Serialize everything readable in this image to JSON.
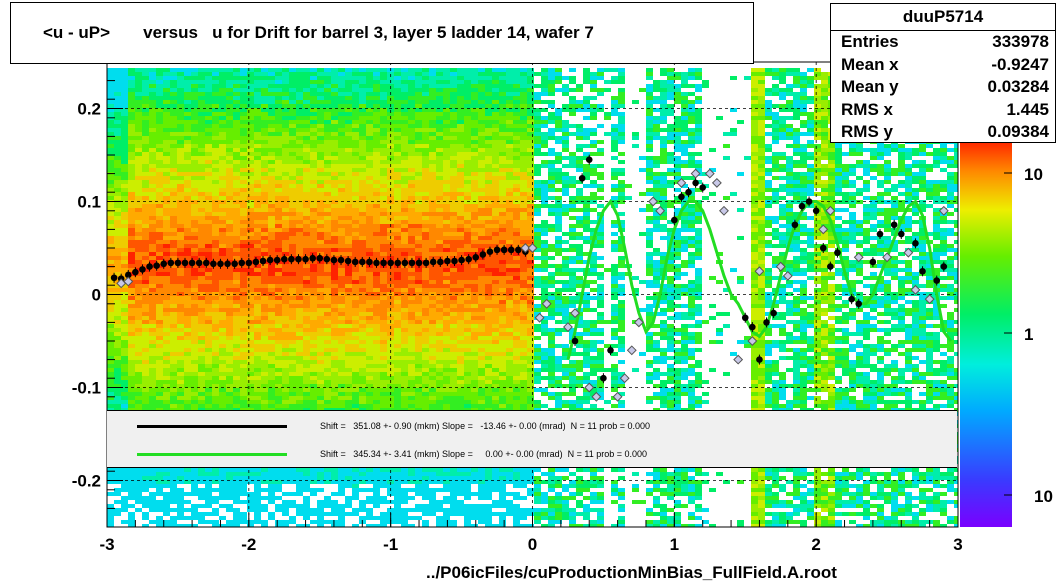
{
  "title": "<u - uP>       versus   u for Drift for barrel 3, layer 5 ladder 14, wafer 7",
  "footer": "../P06icFiles/cuProductionMinBias_FullField.A.root",
  "stats": {
    "name": "duuP5714",
    "rows": [
      {
        "label": "Entries",
        "value": "333978"
      },
      {
        "label": "Mean x",
        "value": "-0.9247"
      },
      {
        "label": "Mean y",
        "value": "0.03284"
      },
      {
        "label": "RMS x",
        "value": "1.445"
      },
      {
        "label": "RMS y",
        "value": "0.09384"
      }
    ]
  },
  "legend": [
    {
      "color": "#000000",
      "text": "Shift =   351.08 +- 0.90 (mkm) Slope =   -13.46 +- 0.00 (mrad)  N = 11 prob = 0.000"
    },
    {
      "color": "#22dd22",
      "text": "Shift =   345.34 +- 3.41 (mkm) Slope =     0.00 +- 0.00 (mrad)  N = 11 prob = 0.000"
    }
  ],
  "chart_data": {
    "type": "heatmap",
    "x_ticks": [
      "-3",
      "-2",
      "-1",
      "0",
      "1",
      "2",
      "3"
    ],
    "y_ticks": [
      "0.2",
      "0.1",
      "0",
      "-0.1",
      "-0.2"
    ],
    "z_ticks": [
      "10",
      "1",
      "10"
    ],
    "xlim": [
      -3,
      3
    ],
    "ylim": [
      -0.25,
      0.25
    ],
    "zscale": "log",
    "grid": true,
    "profile_black": {
      "x": [
        -2.95,
        -2.9,
        -2.85,
        -2.8,
        -2.75,
        -2.7,
        -2.65,
        -2.6,
        -2.55,
        -2.5,
        -2.45,
        -2.4,
        -2.35,
        -2.3,
        -2.25,
        -2.2,
        -2.15,
        -2.1,
        -2.05,
        -2.0,
        -1.95,
        -1.9,
        -1.85,
        -1.8,
        -1.75,
        -1.7,
        -1.65,
        -1.6,
        -1.55,
        -1.5,
        -1.45,
        -1.4,
        -1.35,
        -1.3,
        -1.25,
        -1.2,
        -1.15,
        -1.1,
        -1.05,
        -1.0,
        -0.95,
        -0.9,
        -0.85,
        -0.8,
        -0.75,
        -0.7,
        -0.65,
        -0.6,
        -0.55,
        -0.5,
        -0.45,
        -0.4,
        -0.35,
        -0.3,
        -0.25,
        -0.2,
        -0.15,
        -0.1,
        -0.05,
        0.3,
        0.35,
        0.4,
        0.5,
        0.55,
        1.0,
        1.05,
        1.1,
        1.15,
        1.2,
        1.5,
        1.55,
        1.6,
        1.65,
        1.7,
        1.85,
        1.9,
        1.95,
        2.0,
        2.05,
        2.1,
        2.15,
        2.25,
        2.3,
        2.4,
        2.45,
        2.55,
        2.6,
        2.7,
        2.75,
        2.85,
        2.9
      ],
      "y": [
        0.018,
        0.017,
        0.021,
        0.024,
        0.027,
        0.03,
        0.031,
        0.033,
        0.034,
        0.034,
        0.034,
        0.034,
        0.034,
        0.034,
        0.033,
        0.033,
        0.033,
        0.033,
        0.034,
        0.034,
        0.035,
        0.036,
        0.037,
        0.037,
        0.038,
        0.038,
        0.038,
        0.038,
        0.039,
        0.039,
        0.038,
        0.037,
        0.037,
        0.036,
        0.035,
        0.035,
        0.035,
        0.034,
        0.034,
        0.034,
        0.034,
        0.034,
        0.034,
        0.034,
        0.034,
        0.035,
        0.035,
        0.036,
        0.036,
        0.037,
        0.038,
        0.04,
        0.043,
        0.046,
        0.048,
        0.048,
        0.048,
        0.048,
        0.046,
        -0.05,
        0.125,
        0.145,
        -0.09,
        -0.06,
        0.08,
        0.105,
        0.11,
        0.12,
        0.115,
        -0.025,
        -0.035,
        -0.07,
        -0.03,
        -0.02,
        0.075,
        0.095,
        0.1,
        0.09,
        0.05,
        0.03,
        0.045,
        -0.005,
        -0.01,
        0.035,
        0.065,
        0.075,
        0.065,
        0.055,
        0.025,
        0.015,
        0.03
      ]
    },
    "profile_gray": {
      "x": [
        -2.9,
        -2.85,
        -0.05,
        0.0,
        0.05,
        0.1,
        0.25,
        0.3,
        0.4,
        0.45,
        0.6,
        0.65,
        0.7,
        0.75,
        0.85,
        0.9,
        1.05,
        1.15,
        1.25,
        1.3,
        1.35,
        1.45,
        1.55,
        1.6,
        1.75,
        1.8,
        2.05,
        2.1,
        2.3,
        2.5,
        2.65,
        2.7,
        2.8,
        2.9
      ],
      "y": [
        0.012,
        0.014,
        0.05,
        0.05,
        -0.025,
        -0.01,
        -0.035,
        -0.02,
        -0.1,
        -0.11,
        -0.11,
        -0.09,
        -0.06,
        -0.03,
        0.1,
        0.09,
        0.12,
        0.13,
        0.13,
        0.12,
        0.09,
        -0.07,
        -0.05,
        0.025,
        0.03,
        0.02,
        0.07,
        0.09,
        0.04,
        0.04,
        0.045,
        0.005,
        -0.005,
        0.09
      ]
    },
    "fit_green": {
      "x": [
        0.25,
        0.3,
        0.35,
        0.4,
        0.45,
        0.5,
        0.55,
        0.6,
        0.65,
        0.7,
        0.75,
        0.8,
        0.85,
        0.9,
        0.95,
        1.0,
        1.05,
        1.1,
        1.15,
        1.2,
        1.25,
        1.3,
        1.35,
        1.4,
        1.45,
        1.5,
        1.55,
        1.6,
        1.65,
        1.7,
        1.75,
        1.8,
        1.85,
        1.9,
        1.95,
        2.0,
        2.05,
        2.1,
        2.15,
        2.2,
        2.25,
        2.3,
        2.35,
        2.4,
        2.45,
        2.5,
        2.55,
        2.6,
        2.65,
        2.7,
        2.75,
        2.8,
        2.85,
        2.9,
        2.95
      ],
      "y": [
        -0.07,
        -0.04,
        0.0,
        0.04,
        0.07,
        0.09,
        0.1,
        0.085,
        0.05,
        0.01,
        -0.02,
        -0.04,
        -0.03,
        0.0,
        0.04,
        0.07,
        0.09,
        0.1,
        0.1,
        0.09,
        0.07,
        0.045,
        0.02,
        0.0,
        -0.01,
        -0.025,
        -0.04,
        -0.045,
        -0.035,
        -0.01,
        0.02,
        0.05,
        0.075,
        0.09,
        0.1,
        0.1,
        0.095,
        0.08,
        0.055,
        0.025,
        0.0,
        -0.01,
        -0.01,
        0.0,
        0.02,
        0.04,
        0.06,
        0.08,
        0.095,
        0.1,
        0.085,
        0.05,
        0.0,
        -0.04,
        -0.05
      ]
    }
  }
}
